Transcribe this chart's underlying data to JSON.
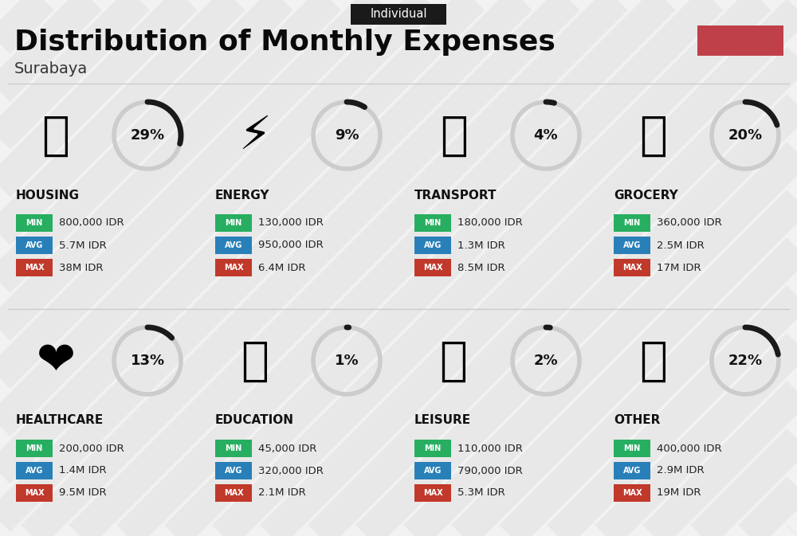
{
  "title": "Distribution of Monthly Expenses",
  "subtitle": "Surabaya",
  "tag": "Individual",
  "bg_color": "#f2f2f2",
  "tag_bg": "#1a1a1a",
  "tag_color": "#ffffff",
  "red_box_color": "#c0404a",
  "categories": [
    {
      "name": "HOUSING",
      "percent": 29,
      "min": "800,000 IDR",
      "avg": "5.7M IDR",
      "max": "38M IDR",
      "icon": "🏢",
      "row": 0,
      "col": 0
    },
    {
      "name": "ENERGY",
      "percent": 9,
      "min": "130,000 IDR",
      "avg": "950,000 IDR",
      "max": "6.4M IDR",
      "icon": "⚡",
      "row": 0,
      "col": 1
    },
    {
      "name": "TRANSPORT",
      "percent": 4,
      "min": "180,000 IDR",
      "avg": "1.3M IDR",
      "max": "8.5M IDR",
      "icon": "🚌",
      "row": 0,
      "col": 2
    },
    {
      "name": "GROCERY",
      "percent": 20,
      "min": "360,000 IDR",
      "avg": "2.5M IDR",
      "max": "17M IDR",
      "icon": "🛒",
      "row": 0,
      "col": 3
    },
    {
      "name": "HEALTHCARE",
      "percent": 13,
      "min": "200,000 IDR",
      "avg": "1.4M IDR",
      "max": "9.5M IDR",
      "icon": "❤️",
      "row": 1,
      "col": 0
    },
    {
      "name": "EDUCATION",
      "percent": 1,
      "min": "45,000 IDR",
      "avg": "320,000 IDR",
      "max": "2.1M IDR",
      "icon": "🎓",
      "row": 1,
      "col": 1
    },
    {
      "name": "LEISURE",
      "percent": 2,
      "min": "110,000 IDR",
      "avg": "790,000 IDR",
      "max": "5.3M IDR",
      "icon": "🛍️",
      "row": 1,
      "col": 2
    },
    {
      "name": "OTHER",
      "percent": 22,
      "min": "400,000 IDR",
      "avg": "2.9M IDR",
      "max": "19M IDR",
      "icon": "💰",
      "row": 1,
      "col": 3
    }
  ],
  "min_color": "#27ae60",
  "avg_color": "#2980b9",
  "max_color": "#c0392b",
  "label_text_color": "#ffffff",
  "value_text_color": "#222222",
  "category_text_color": "#111111",
  "percent_text_color": "#111111",
  "circle_color_dark": "#1a1a1a",
  "circle_color_light": "#cccccc",
  "stripe_color": "#e0e0e0",
  "divider_color": "#cccccc"
}
